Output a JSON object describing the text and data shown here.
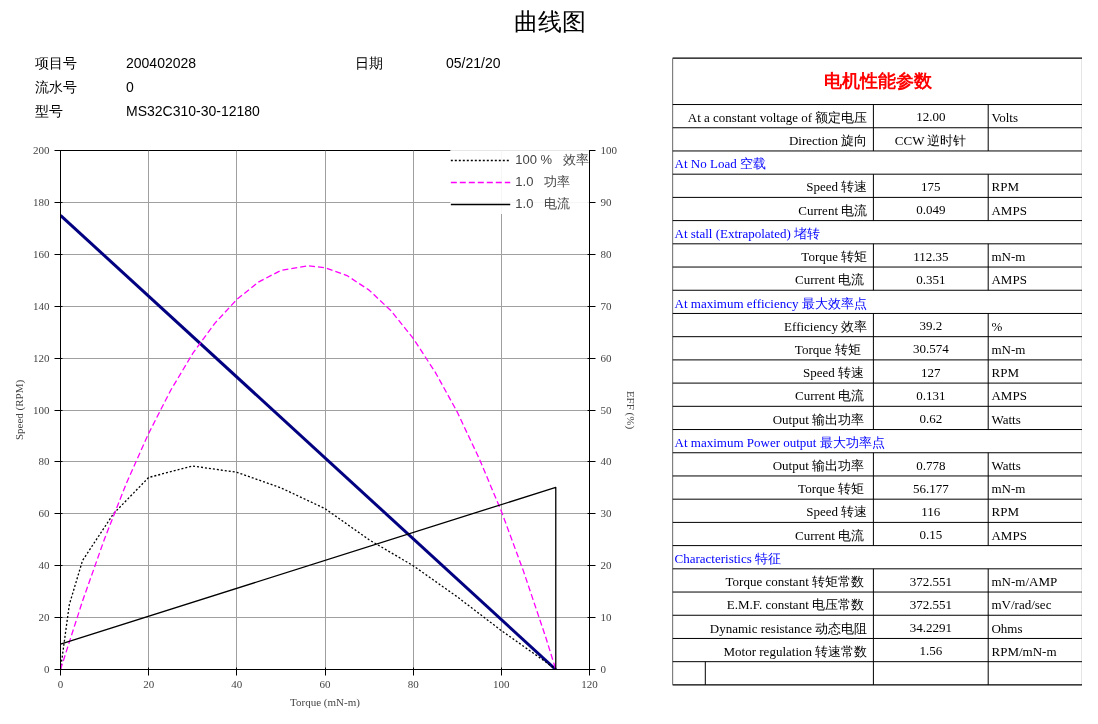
{
  "chart_data": [
    {
      "type": "line",
      "title": "曲线图",
      "annotations": [
        "项目号",
        "200402028",
        "流水号",
        "0",
        "型号",
        "MS32C310-30-12180",
        "日期",
        "05/21/20"
      ],
      "xlabel": "Torque (mN-m)",
      "ylabel": "Speed (RPM)",
      "y2label": "EFF (%)",
      "xlim": [
        0,
        120
      ],
      "xticks": [
        0,
        20,
        40,
        60,
        80,
        100,
        120
      ],
      "ylim": [
        0,
        200
      ],
      "yticks": [
        0,
        20,
        40,
        60,
        80,
        100,
        120,
        140,
        160,
        180,
        200
      ],
      "y2lim": [
        0,
        100
      ],
      "y2ticks": [
        0,
        10,
        20,
        30,
        40,
        50,
        60,
        70,
        80,
        90,
        100
      ],
      "grid": true,
      "legend": "top right",
      "marker": "none",
      "series": [
        {
          "color": "#000080",
          "line_style": "solid",
          "axis": "y",
          "x": [
            0,
            112.35
          ],
          "values": [
            175,
            0
          ]
        },
        {
          "name": "100 %   效率",
          "color": "#000000",
          "line_style": "dotted",
          "axis": "y2",
          "x": [
            0,
            2,
            5,
            12,
            20,
            30,
            40,
            50,
            60,
            70,
            80,
            90,
            100,
            110,
            112.35
          ],
          "values": [
            0,
            12.5,
            21,
            30,
            37,
            39.2,
            38,
            35,
            31,
            25,
            20,
            14,
            7.5,
            1.5,
            0
          ]
        },
        {
          "name": "1.0   功率",
          "color": "#ff00ff",
          "line_style": "dashed",
          "axis": "y2",
          "x": [
            0,
            5,
            10,
            15,
            20,
            25,
            30,
            35,
            40,
            45,
            50,
            56.18,
            60,
            65,
            70,
            75,
            80,
            85,
            90,
            95,
            100,
            105,
            110,
            112.35
          ],
          "values": [
            0,
            13.2,
            25.2,
            36,
            45.5,
            53.8,
            60.9,
            66.7,
            71.3,
            74.7,
            76.9,
            77.8,
            77.4,
            75.9,
            73.1,
            69.1,
            63.8,
            57.3,
            49.6,
            40.6,
            30.5,
            19,
            6.4,
            0
          ]
        },
        {
          "name": "1.0   电流",
          "color": "#000000",
          "line_style": "solid",
          "axis": "y2",
          "x": [
            0,
            112.35,
            112.35
          ],
          "values": [
            4.9,
            35.1,
            0
          ]
        }
      ]
    },
    {
      "type": "other",
      "title": "电机性能参数",
      "categories": [
        "At a constant voltage of 额定电压",
        "Direction 旋向",
        "At No Load 空载",
        "Speed 转速",
        "Current 电流",
        "At stall (Extrapolated) 堵转",
        "Torque 转矩",
        "Current  电流",
        "At maximum efficiency 最大效率点",
        "Efficiency 效率",
        "Torque   转矩",
        "Speed  转速",
        "Current  电流",
        "Output  输出功率",
        "At maximum Power output 最大功率点",
        "Output  输出功率",
        "Torque  转矩",
        "Speed 转速",
        "Current  电流",
        "Characteristics 特征",
        "Torque constant  转矩常数",
        "E.M.F. constant  电压常数",
        "Dynamic resistance 动态电阻",
        "Motor regulation 转速常数"
      ],
      "cell_labels": [
        [
          "12.00",
          "Volts"
        ],
        [
          "CCW 逆时针",
          null
        ],
        null,
        [
          "175",
          "RPM"
        ],
        [
          "0.049",
          "AMPS"
        ],
        null,
        [
          "112.35",
          "mN-m"
        ],
        [
          "0.351",
          "AMPS"
        ],
        null,
        [
          "39.2",
          "%"
        ],
        [
          "30.574",
          "mN-m"
        ],
        [
          "127",
          "RPM"
        ],
        [
          "0.131",
          "AMPS"
        ],
        [
          "0.62",
          "Watts"
        ],
        null,
        [
          "0.778",
          "Watts"
        ],
        [
          "56.177",
          "mN-m"
        ],
        [
          "116",
          "RPM"
        ],
        [
          "0.15",
          "AMPS"
        ],
        null,
        [
          "372.551",
          "mN-m/AMP"
        ],
        [
          "372.551",
          "mV/rad/sec"
        ],
        [
          "34.2291",
          "Ohms"
        ],
        [
          "1.56",
          "RPM/mN-m"
        ]
      ]
    }
  ]
}
